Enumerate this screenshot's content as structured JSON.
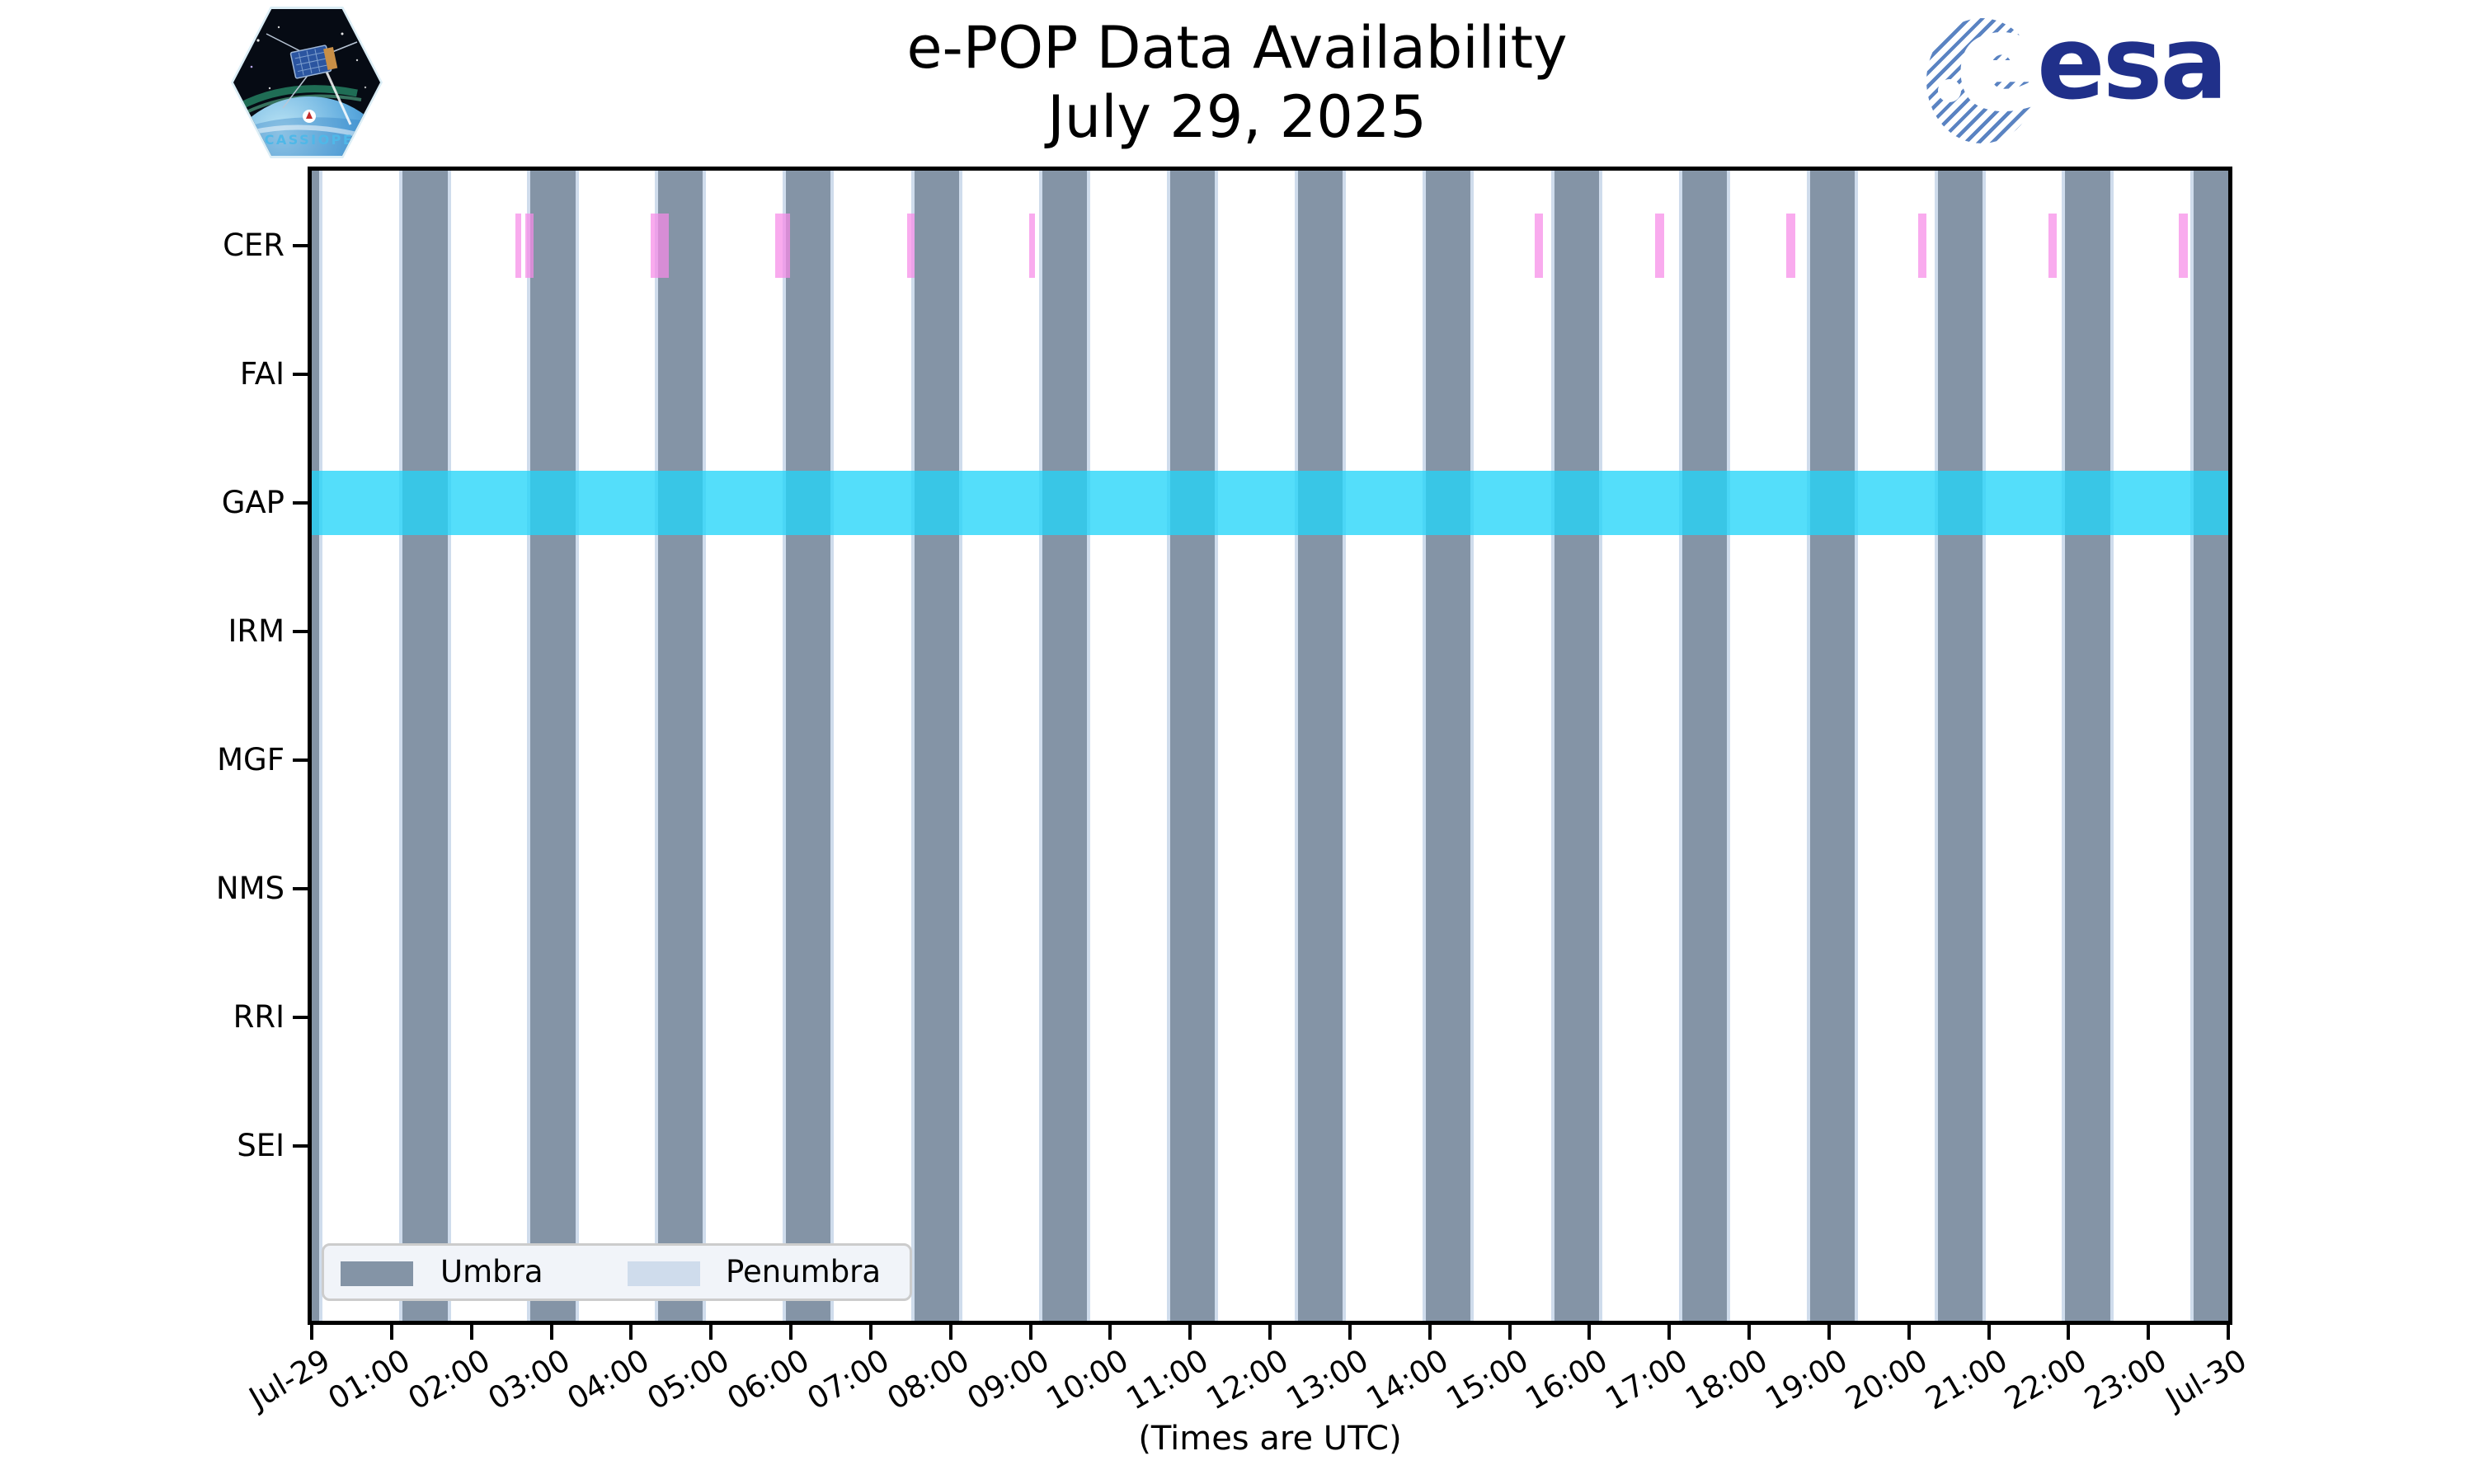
{
  "header": {
    "title_line1": "e-POP Data Availability",
    "title_line2": "July 29, 2025"
  },
  "branding": {
    "cassiope_label": "CASSIOPE",
    "esa_wordmark": "esa",
    "esa_e_glyph": "e"
  },
  "legend": {
    "umbra_label": "Umbra",
    "penumbra_label": "Penumbra"
  },
  "chart_data": {
    "type": "timeline-availability",
    "title": "e-POP Data Availability",
    "subtitle": "July 29, 2025",
    "xlabel": "(Times are UTC)",
    "x_axis": {
      "start": "Jul-29 00:00 UTC",
      "end": "Jul-30 00:00 UTC",
      "range_hours": [
        0,
        24
      ],
      "tick_interval_hours": 1,
      "tick_labels": [
        "Jul-29",
        "01:00",
        "02:00",
        "03:00",
        "04:00",
        "05:00",
        "06:00",
        "07:00",
        "08:00",
        "09:00",
        "10:00",
        "11:00",
        "12:00",
        "13:00",
        "14:00",
        "15:00",
        "16:00",
        "17:00",
        "18:00",
        "19:00",
        "20:00",
        "21:00",
        "22:00",
        "23:00",
        "Jul-30"
      ]
    },
    "instruments": [
      "CER",
      "FAI",
      "GAP",
      "IRM",
      "MGF",
      "NMS",
      "RRI",
      "SEI"
    ],
    "umbra_intervals_hours": [
      [
        0.0,
        0.09
      ],
      [
        1.14,
        1.7
      ],
      [
        2.74,
        3.3
      ],
      [
        4.34,
        4.9
      ],
      [
        5.94,
        6.5
      ],
      [
        7.55,
        8.11
      ],
      [
        9.15,
        9.71
      ],
      [
        10.75,
        11.31
      ],
      [
        12.35,
        12.91
      ],
      [
        13.95,
        14.51
      ],
      [
        15.56,
        16.12
      ],
      [
        17.16,
        17.72
      ],
      [
        18.76,
        19.32
      ],
      [
        20.36,
        20.92
      ],
      [
        21.96,
        22.52
      ],
      [
        23.57,
        24.0
      ]
    ],
    "penumbra_note": "thin strips flanking each umbra interval",
    "availability": {
      "CER": [
        [
          2.55,
          2.62
        ],
        [
          2.67,
          2.78
        ],
        [
          4.24,
          4.47
        ],
        [
          5.8,
          5.99
        ],
        [
          7.46,
          7.55
        ],
        [
          8.98,
          9.06
        ],
        [
          15.32,
          15.42
        ],
        [
          16.82,
          16.94
        ],
        [
          18.46,
          18.58
        ],
        [
          20.12,
          20.22
        ],
        [
          21.75,
          21.85
        ],
        [
          23.38,
          23.49
        ]
      ],
      "FAI": [],
      "GAP": [
        [
          0,
          24
        ]
      ],
      "IRM": [],
      "MGF": [],
      "NMS": [],
      "RRI": [],
      "SEI": []
    },
    "legend_entries": [
      {
        "label": "Umbra",
        "color": "#8494a6"
      },
      {
        "label": "Penumbra",
        "color": "#cfdcec"
      }
    ],
    "colors": {
      "umbra": "#8494a6",
      "penumbra": "#cfdcec",
      "gap_band_cyan": "#54defa",
      "cer_marks_pink": "#f9aaee",
      "axis": "#000000",
      "esa_navy": "#20308a",
      "esa_stripe_blue": "#5a83c2",
      "cassiope_text_blue": "#4fb8e8"
    },
    "grid": false,
    "legend_position": "lower left"
  }
}
